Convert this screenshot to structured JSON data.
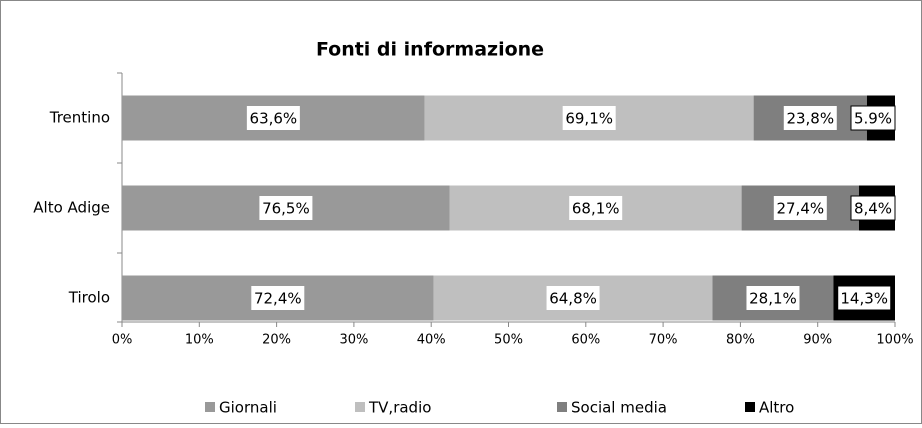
{
  "chart_data": {
    "type": "bar",
    "orientation": "horizontal",
    "stacked": "percent",
    "title": "Fonti di informazione",
    "categories": [
      "Trentino",
      "Alto Adige",
      "Tirolo"
    ],
    "series": [
      {
        "name": "Giornali",
        "color": "#999999",
        "values": [
          63.6,
          76.5,
          72.4
        ],
        "value_labels": [
          "63,6%",
          "76,5%",
          "72,4%"
        ]
      },
      {
        "name": "TV,radio",
        "color": "#bfbfbf",
        "values": [
          69.1,
          68.1,
          64.8
        ],
        "value_labels": [
          "69,1%",
          "68,1%",
          "64,8%"
        ]
      },
      {
        "name": "Social media",
        "color": "#7f7f7f",
        "values": [
          23.8,
          27.4,
          28.1
        ],
        "value_labels": [
          "23,8%",
          "27,4%",
          "28,1%"
        ]
      },
      {
        "name": "Altro",
        "color": "#000000",
        "values": [
          5.9,
          8.4,
          14.3
        ],
        "value_labels": [
          "5.9%",
          "8,4%",
          "14,3%"
        ]
      }
    ],
    "xlim": [
      0,
      100
    ],
    "xticks": [
      {
        "value": 0,
        "label": "0%"
      },
      {
        "value": 10,
        "label": "10%"
      },
      {
        "value": 20,
        "label": "20%"
      },
      {
        "value": 30,
        "label": "30%"
      },
      {
        "value": 40,
        "label": "40%"
      },
      {
        "value": 50,
        "label": "50%"
      },
      {
        "value": 60,
        "label": "60%"
      },
      {
        "value": 70,
        "label": "70%"
      },
      {
        "value": 80,
        "label": "80%"
      },
      {
        "value": 90,
        "label": "90%"
      },
      {
        "value": 100,
        "label": "100%"
      }
    ],
    "legend": "bottom"
  }
}
